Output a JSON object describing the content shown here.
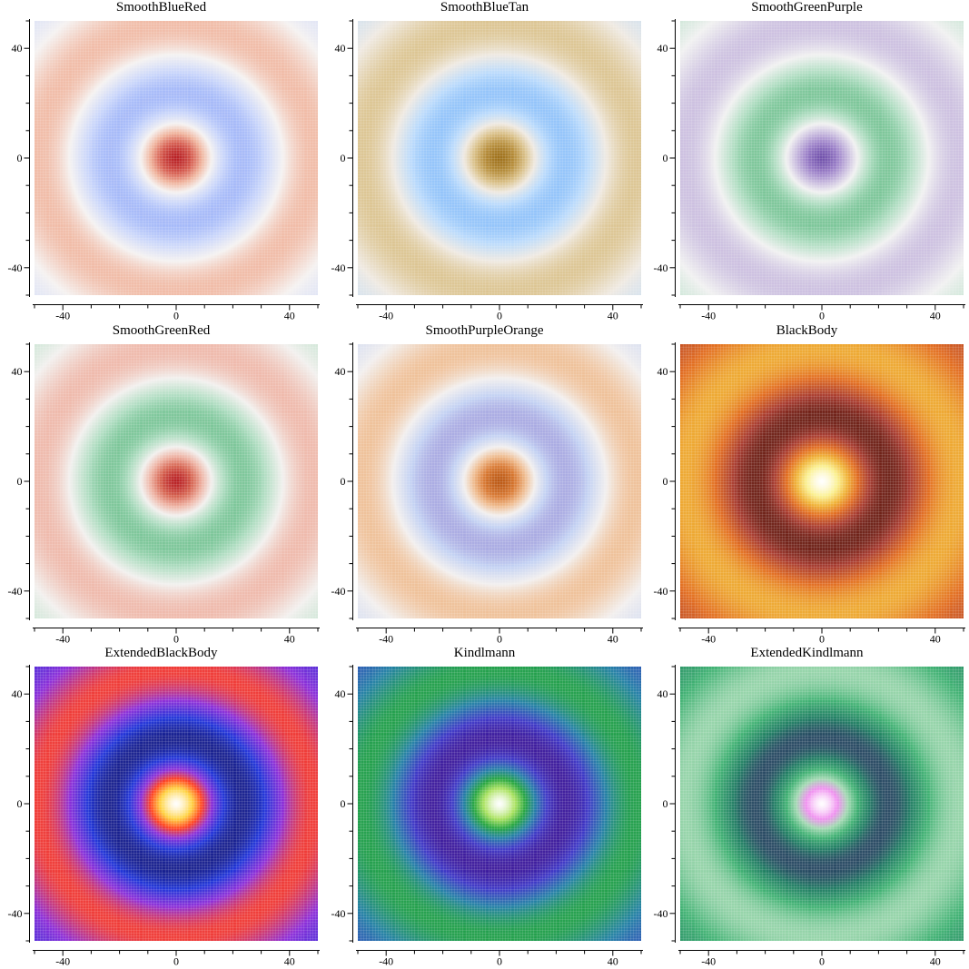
{
  "chart_data": [
    {
      "type": "heatmap",
      "title": "SmoothBlueRed",
      "colormap": [
        "#5a78ee",
        "#8fa8f7",
        "#c7d4fb",
        "#f5f2f1",
        "#f0b29a",
        "#d65a4c",
        "#b5161b"
      ],
      "xlim": [
        -50,
        50
      ],
      "ylim": [
        -50,
        50
      ],
      "xticks": [
        -40,
        0,
        40
      ],
      "yticks": [
        40,
        0,
        -40
      ],
      "function": "radial ripple z = cos(r/8)·exp(-r/40), centered at (0,0)"
    },
    {
      "type": "heatmap",
      "title": "SmoothBlueTan",
      "colormap": [
        "#2b7fe0",
        "#7ab6f9",
        "#b9dafc",
        "#efe9e1",
        "#d9bf85",
        "#b88f3c",
        "#9a6a10"
      ],
      "xlim": [
        -50,
        50
      ],
      "ylim": [
        -50,
        50
      ],
      "xticks": [
        -40,
        0,
        40
      ],
      "yticks": [
        40,
        0,
        -40
      ]
    },
    {
      "type": "heatmap",
      "title": "SmoothGreenPurple",
      "colormap": [
        "#118a3c",
        "#5cb880",
        "#acdcbf",
        "#f1f1f1",
        "#c6b8dd",
        "#9a7ec8",
        "#6b4aa8"
      ],
      "xlim": [
        -50,
        50
      ],
      "ylim": [
        -50,
        50
      ],
      "xticks": [
        -40,
        0,
        40
      ],
      "yticks": [
        40,
        0,
        -40
      ]
    },
    {
      "type": "heatmap",
      "title": "SmoothGreenRed",
      "colormap": [
        "#118a3c",
        "#5cb880",
        "#acdcbf",
        "#f2f0ee",
        "#eeb0a0",
        "#d6604c",
        "#b5161b"
      ],
      "xlim": [
        -50,
        50
      ],
      "ylim": [
        -50,
        50
      ],
      "xticks": [
        -40,
        0,
        40
      ],
      "yticks": [
        40,
        0,
        -40
      ]
    },
    {
      "type": "heatmap",
      "title": "SmoothPurpleOrange",
      "colormap": [
        "#6a3d9a",
        "#9a93d8",
        "#c1d0f3",
        "#f2efee",
        "#efb98a",
        "#d9772f",
        "#b8510a"
      ],
      "xlim": [
        -50,
        50
      ],
      "ylim": [
        -50,
        50
      ],
      "xticks": [
        -40,
        0,
        40
      ],
      "yticks": [
        40,
        0,
        -40
      ]
    },
    {
      "type": "heatmap",
      "title": "BlackBody",
      "colormap": [
        "#000000",
        "#4a0e06",
        "#a6362a",
        "#e26a1c",
        "#f0b030",
        "#fbf08c",
        "#ffffff"
      ],
      "xlim": [
        -50,
        50
      ],
      "ylim": [
        -50,
        50
      ],
      "xticks": [
        -40,
        0,
        40
      ],
      "yticks": [
        40,
        0,
        -40
      ]
    },
    {
      "type": "heatmap",
      "title": "ExtendedBlackBody",
      "colormap": [
        "#000000",
        "#101060",
        "#1a30d8",
        "#8a2ad8",
        "#ff3a1a",
        "#ffd23a",
        "#ffffff"
      ],
      "xlim": [
        -50,
        50
      ],
      "ylim": [
        -50,
        50
      ],
      "xticks": [
        -40,
        0,
        40
      ],
      "yticks": [
        40,
        0,
        -40
      ]
    },
    {
      "type": "heatmap",
      "title": "Kindlmann",
      "colormap": [
        "#000000",
        "#3b0882",
        "#3a33c6",
        "#1f7ea4",
        "#1ea33a",
        "#a8e25a",
        "#ffffff"
      ],
      "xlim": [
        -50,
        50
      ],
      "ylim": [
        -50,
        50
      ],
      "xticks": [
        -40,
        0,
        40
      ],
      "yticks": [
        40,
        0,
        -40
      ]
    },
    {
      "type": "heatmap",
      "title": "ExtendedKindlmann",
      "colormap": [
        "#000000",
        "#2a2860",
        "#1c7a60",
        "#3cb070",
        "#a0d8b0",
        "#f08cf0",
        "#ffffff"
      ],
      "xlim": [
        -50,
        50
      ],
      "ylim": [
        -50,
        50
      ],
      "xticks": [
        -40,
        0,
        40
      ],
      "yticks": [
        40,
        0,
        -40
      ]
    }
  ]
}
